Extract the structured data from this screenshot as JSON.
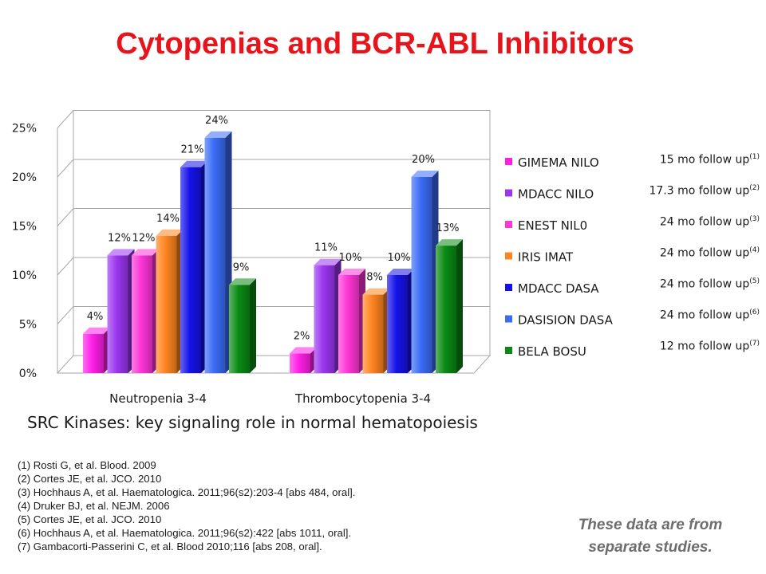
{
  "title": "Cytopenias and BCR-ABL Inhibitors",
  "subtitle": "SRC Kinases: key signaling role in normal hematopoiesis",
  "note": [
    "These data are from",
    "separate studies."
  ],
  "references": [
    "(1) Rosti G, et al. Blood. 2009",
    "(2) Cortes JE, et al. JCO. 2010",
    "(3) Hochhaus A, et al. Haematologica. 2011;96(s2):203-4 [abs 484, oral].",
    "(4) Druker BJ, et al. NEJM. 2006",
    "(5) Cortes JE, et al. JCO. 2010",
    "(6) Hochhaus A, et al. Haematologica. 2011;96(s2):422 [abs 1011, oral].",
    "(7) Gambacorti-Passerini C, et al. Blood 2010;116 [abs 208, oral]."
  ],
  "chart_data": {
    "type": "bar",
    "title": "",
    "xlabel": "",
    "ylabel": "",
    "ylim": [
      0,
      25
    ],
    "yticks": [
      "0%",
      "5%",
      "10%",
      "15%",
      "20%",
      "25%"
    ],
    "grid": true,
    "legend_position": "right",
    "categories": [
      "Neutropenia 3-4",
      "Thrombocytopenia 3-4"
    ],
    "series": [
      {
        "name": "GIMEMA NILO",
        "values": [
          4,
          2
        ],
        "labels": [
          "4%",
          "2%"
        ],
        "color": "#ff1ee6",
        "follow_up": "15 mo follow up",
        "ref": "(1)"
      },
      {
        "name": "MDACC NILO",
        "values": [
          12,
          11
        ],
        "labels": [
          "12%",
          "11%"
        ],
        "color": "#9b35f0",
        "follow_up": "17.3 mo follow up",
        "ref": "(2)"
      },
      {
        "name": "ENEST NIL0",
        "values": [
          12,
          10
        ],
        "labels": [
          "12%",
          "10%"
        ],
        "color": "#ff35d7",
        "follow_up": "24 mo follow up",
        "ref": "(3)"
      },
      {
        "name": "IRIS IMAT",
        "values": [
          14,
          8
        ],
        "labels": [
          "14%",
          "8%"
        ],
        "color": "#ff8420",
        "follow_up": "24 mo follow up",
        "ref": "(4)"
      },
      {
        "name": "MDACC DASA",
        "values": [
          21,
          10
        ],
        "labels": [
          "21%",
          "10%"
        ],
        "color": "#1512e8",
        "follow_up": "24 mo follow up",
        "ref": "(5)"
      },
      {
        "name": "DASISION DASA",
        "values": [
          24,
          20
        ],
        "labels": [
          "24%",
          "20%"
        ],
        "color": "#3a6cf6",
        "follow_up": "24 mo follow up",
        "ref": "(6)"
      },
      {
        "name": "BELA BOSU",
        "values": [
          9,
          13
        ],
        "labels": [
          "9%",
          "13%"
        ],
        "color": "#0a8a14",
        "follow_up": "12 mo follow up",
        "ref": "(7)"
      }
    ]
  }
}
